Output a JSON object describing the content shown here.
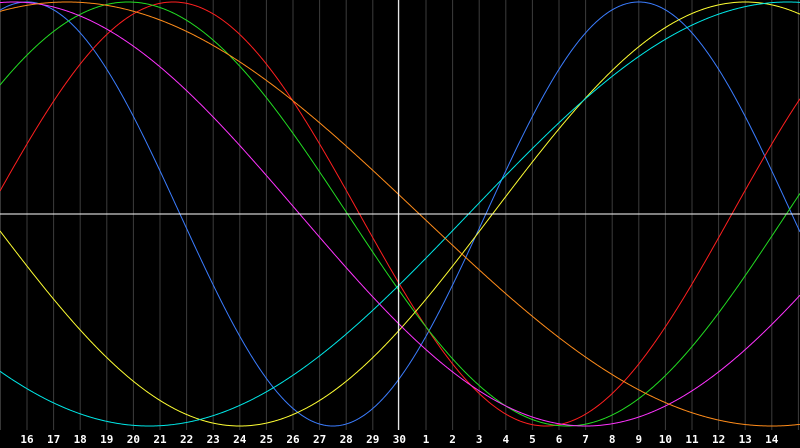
{
  "chart_data": {
    "type": "line",
    "title": "",
    "xlabel": "",
    "ylabel": "",
    "ylim": [
      -1,
      1
    ],
    "x_tick_labels": [
      "16",
      "17",
      "18",
      "19",
      "20",
      "21",
      "22",
      "23",
      "24",
      "25",
      "26",
      "27",
      "28",
      "29",
      "30",
      "1",
      "2",
      "3",
      "4",
      "5",
      "6",
      "7",
      "8",
      "9",
      "10",
      "11",
      "12",
      "13",
      "14"
    ],
    "x_range": [
      15.5,
      15.0
    ],
    "grid": true,
    "cursor_date": "30",
    "colors": {
      "background": "#000000",
      "grid": "#3c3c3c",
      "crosshair": "#ffffff",
      "tick_label": "#ffffff"
    },
    "series": [
      {
        "color": "#3b7dff",
        "period_days": 23,
        "peak_day": 9
      },
      {
        "color": "#ff1f1f",
        "period_days": 28,
        "peak_day": 21.5
      },
      {
        "color": "#22dd22",
        "period_days": 33,
        "peak_day": 19.8
      },
      {
        "color": "#ffff33",
        "period_days": 38,
        "peak_day": 13
      },
      {
        "color": "#00e8e8",
        "period_days": 48,
        "peak_day": 14.6
      },
      {
        "color": "#ff33ff",
        "period_days": 43,
        "peak_day": 15.5
      },
      {
        "color": "#ff8c1a",
        "period_days": 53,
        "peak_day": 17.5
      }
    ]
  }
}
